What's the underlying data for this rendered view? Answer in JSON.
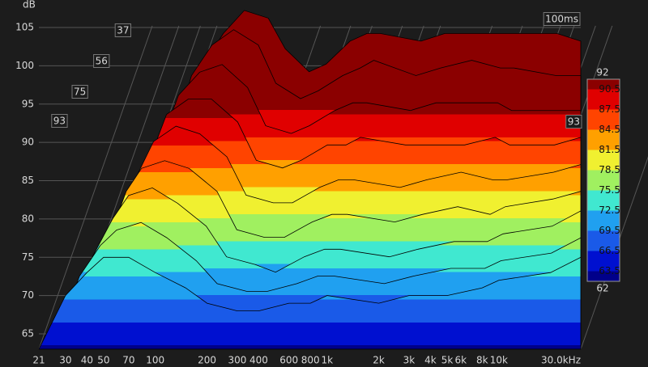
{
  "chart_data": {
    "type": "waterfall",
    "y_label": "dB",
    "ylim": [
      63,
      106
    ],
    "yticks": [
      65,
      70,
      75,
      80,
      85,
      90,
      95,
      100,
      105
    ],
    "xlim": [
      21,
      30000
    ],
    "xscale": "log",
    "xticks": [
      21,
      30,
      40,
      50,
      70,
      100,
      200,
      300,
      400,
      600,
      800,
      {
        "value": 1000,
        "label": "1k"
      },
      {
        "value": 2000,
        "label": "2k"
      },
      {
        "value": 3000,
        "label": "3k"
      },
      {
        "value": 4000,
        "label": "4k"
      },
      {
        "value": 5000,
        "label": "5k"
      },
      {
        "value": 6000,
        "label": "6k"
      },
      {
        "value": 8000,
        "label": "8k"
      },
      {
        "value": 10000,
        "label": "10k"
      },
      {
        "value": 30000,
        "label": "30.0kHz"
      }
    ],
    "time_end": {
      "value": 100,
      "label": "100ms"
    },
    "time_ticks": [
      93,
      75,
      56,
      37
    ],
    "frequencies": [
      21,
      30,
      40,
      50,
      70,
      100,
      150,
      200,
      300,
      400,
      600,
      800,
      1000,
      2000,
      3000,
      5000,
      8000,
      10000,
      20000,
      30000
    ],
    "slices": [
      {
        "time": 0,
        "values": [
          68,
          80,
          90,
          96,
          100,
          103,
          102,
          98,
          95,
          96,
          99,
          100,
          100,
          99,
          100,
          100,
          100,
          100,
          100,
          99
        ]
      },
      {
        "time": 12,
        "values": [
          67,
          79,
          89,
          95,
          99,
          101,
          99,
          94,
          92,
          93,
          95,
          96,
          97,
          95,
          96,
          97,
          96,
          96,
          95,
          95
        ]
      },
      {
        "time": 25,
        "values": [
          66,
          78,
          88,
          93,
          96,
          97,
          94,
          89,
          88,
          89,
          91,
          92,
          92,
          91,
          92,
          92,
          92,
          91,
          91,
          91
        ]
      },
      {
        "time": 37,
        "values": [
          65,
          77,
          86,
          91,
          93,
          93,
          90,
          85,
          84,
          85,
          87,
          87,
          88,
          87,
          87,
          87,
          88,
          87,
          87,
          88
        ]
      },
      {
        "time": 50,
        "values": [
          65,
          76,
          84,
          88,
          90,
          89,
          86,
          81,
          80,
          80,
          82,
          83,
          83,
          82,
          83,
          84,
          83,
          83,
          84,
          85
        ]
      },
      {
        "time": 62,
        "values": [
          64,
          75,
          82,
          85,
          86,
          85,
          82,
          77,
          76,
          76,
          78,
          79,
          79,
          78,
          79,
          80,
          79,
          80,
          81,
          82
        ]
      },
      {
        "time": 75,
        "values": [
          64,
          74,
          79,
          82,
          83,
          81,
          78,
          74,
          73,
          72,
          74,
          75,
          75,
          74,
          75,
          76,
          76,
          77,
          78,
          80
        ]
      },
      {
        "time": 87,
        "values": [
          63,
          72,
          76,
          78,
          79,
          77,
          74,
          71,
          70,
          70,
          71,
          72,
          72,
          71,
          72,
          73,
          73,
          74,
          75,
          77
        ]
      },
      {
        "time": 100,
        "values": [
          63,
          70,
          73,
          75,
          75,
          73,
          71,
          69,
          68,
          68,
          69,
          69,
          70,
          69,
          70,
          70,
          71,
          72,
          73,
          75
        ]
      }
    ],
    "colorbar_ticks": [
      92,
      90.5,
      87.5,
      84.5,
      81.5,
      78.5,
      75.5,
      72.5,
      69.5,
      66.5,
      63.5,
      62
    ],
    "colorbar_colors": [
      "#8b0000",
      "#e00000",
      "#ff4400",
      "#ffa000",
      "#f0f030",
      "#a0f060",
      "#40e8d0",
      "#20a0f0",
      "#1a5ae8",
      "#0010d0",
      "#00008a"
    ]
  }
}
